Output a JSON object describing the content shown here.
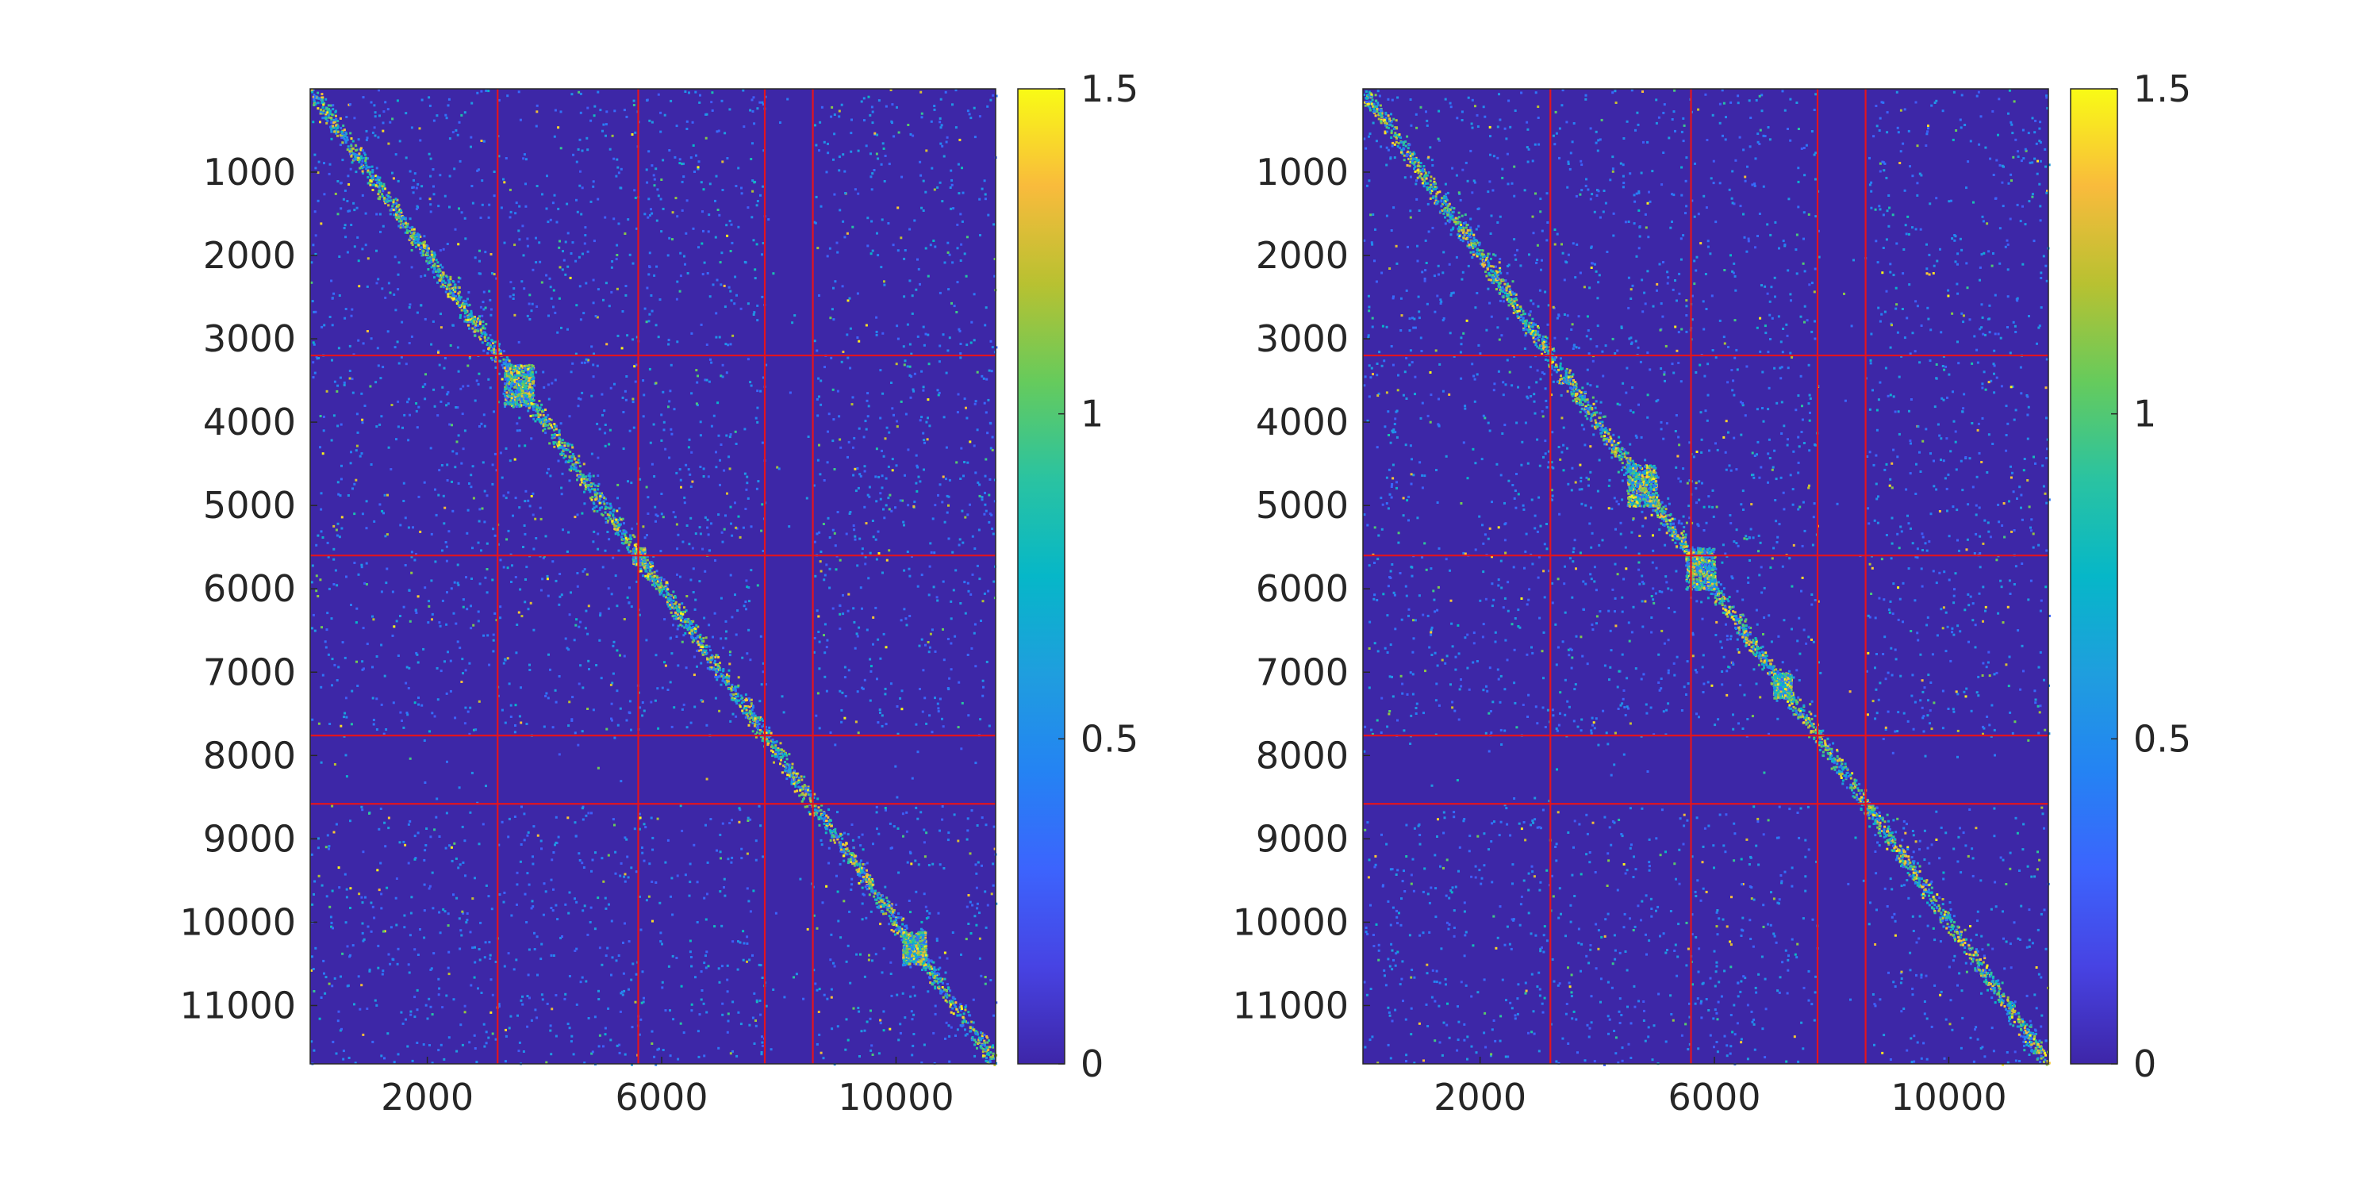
{
  "chart_data": [
    {
      "type": "heatmap",
      "title": "",
      "xlabel": "",
      "ylabel": "",
      "matrix_size": [
        11700,
        11700
      ],
      "xlim": [
        1,
        11700
      ],
      "ylim": [
        1,
        11700
      ],
      "y_reversed": true,
      "x_ticks": [
        2000,
        6000,
        10000
      ],
      "x_tick_labels": [
        "2000",
        "6000",
        "10000"
      ],
      "y_ticks": [
        1000,
        2000,
        3000,
        4000,
        5000,
        6000,
        7000,
        8000,
        9000,
        10000,
        11000
      ],
      "y_tick_labels": [
        "1000",
        "2000",
        "3000",
        "4000",
        "5000",
        "6000",
        "7000",
        "8000",
        "9000",
        "10000",
        "11000"
      ],
      "block_boundaries": [
        3200,
        5600,
        7760,
        8580
      ],
      "block_boundary_color": "#e3141e",
      "colorbar": {
        "clim": [
          0,
          1.5
        ],
        "ticks": [
          0,
          0.5,
          1,
          1.5
        ],
        "tick_labels": [
          "0",
          "0.5",
          "1",
          "1.5"
        ],
        "colormap": "parula"
      },
      "background_value": 0.02,
      "diagonal_band": {
        "peak_value": 1.5,
        "half_width": 150
      },
      "dense_regions": [
        [
          3300,
          3800
        ],
        [
          5500,
          5700
        ],
        [
          10100,
          10500
        ]
      ],
      "grid": false,
      "legend": "none"
    },
    {
      "type": "heatmap",
      "title": "",
      "xlabel": "",
      "ylabel": "",
      "matrix_size": [
        11700,
        11700
      ],
      "xlim": [
        1,
        11700
      ],
      "ylim": [
        1,
        11700
      ],
      "y_reversed": true,
      "x_ticks": [
        2000,
        6000,
        10000
      ],
      "x_tick_labels": [
        "2000",
        "6000",
        "10000"
      ],
      "y_ticks": [
        1000,
        2000,
        3000,
        4000,
        5000,
        6000,
        7000,
        8000,
        9000,
        10000,
        11000
      ],
      "y_tick_labels": [
        "1000",
        "2000",
        "3000",
        "4000",
        "5000",
        "6000",
        "7000",
        "8000",
        "9000",
        "10000",
        "11000"
      ],
      "block_boundaries": [
        3200,
        5600,
        7760,
        8580
      ],
      "block_boundary_color": "#e3141e",
      "colorbar": {
        "clim": [
          0,
          1.5
        ],
        "ticks": [
          0,
          0.5,
          1,
          1.5
        ],
        "tick_labels": [
          "0",
          "0.5",
          "1",
          "1.5"
        ],
        "colormap": "parula"
      },
      "background_value": 0.02,
      "diagonal_band": {
        "peak_value": 1.5,
        "half_width": 150
      },
      "dense_regions": [
        [
          4500,
          5000
        ],
        [
          5500,
          6000
        ],
        [
          7000,
          7300
        ]
      ],
      "grid": false,
      "legend": "none"
    }
  ]
}
